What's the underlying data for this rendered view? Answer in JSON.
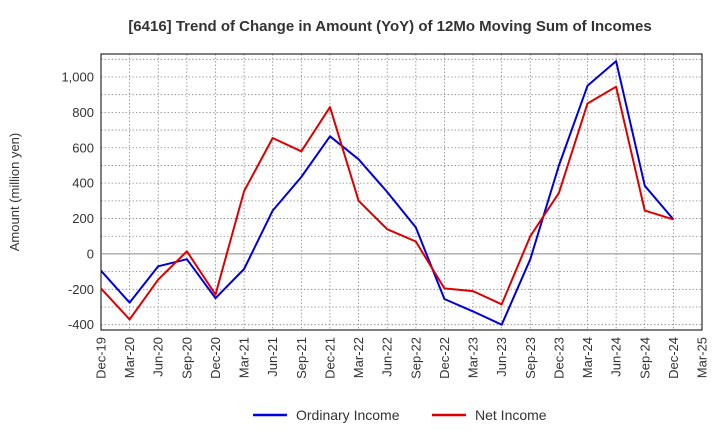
{
  "chart_data": {
    "type": "line",
    "title": "[6416]  Trend of Change in Amount (YoY) of 12Mo Moving Sum of Incomes",
    "xlabel": "",
    "ylabel": "Amount (million yen)",
    "ylim": [
      -430,
      1130
    ],
    "yticks": [
      -400,
      -200,
      0,
      200,
      400,
      600,
      800,
      1000
    ],
    "ytick_labels": [
      "-400",
      "-200",
      "0",
      "200",
      "400",
      "600",
      "800",
      "1,000"
    ],
    "categories": [
      "Dec-19",
      "Mar-20",
      "Jun-20",
      "Sep-20",
      "Dec-20",
      "Mar-21",
      "Jun-21",
      "Sep-21",
      "Dec-21",
      "Mar-22",
      "Jun-22",
      "Sep-22",
      "Dec-22",
      "Mar-23",
      "Jun-23",
      "Sep-23",
      "Dec-23",
      "Mar-24",
      "Jun-24",
      "Sep-24",
      "Dec-24",
      "Mar-25"
    ],
    "series": [
      {
        "name": "Ordinary Income",
        "color": "#0000dd",
        "values": [
          -95,
          -275,
          -70,
          -30,
          -250,
          -85,
          245,
          435,
          665,
          535,
          350,
          150,
          -255,
          -325,
          -400,
          -30,
          500,
          950,
          1090,
          385,
          195,
          null
        ]
      },
      {
        "name": "Net Income",
        "color": "#dd0000",
        "values": [
          -195,
          -370,
          -145,
          15,
          -230,
          355,
          655,
          580,
          830,
          300,
          140,
          70,
          -195,
          -210,
          -285,
          100,
          345,
          850,
          945,
          245,
          195,
          null
        ]
      }
    ],
    "grid": true,
    "legend_position": "bottom-center"
  }
}
